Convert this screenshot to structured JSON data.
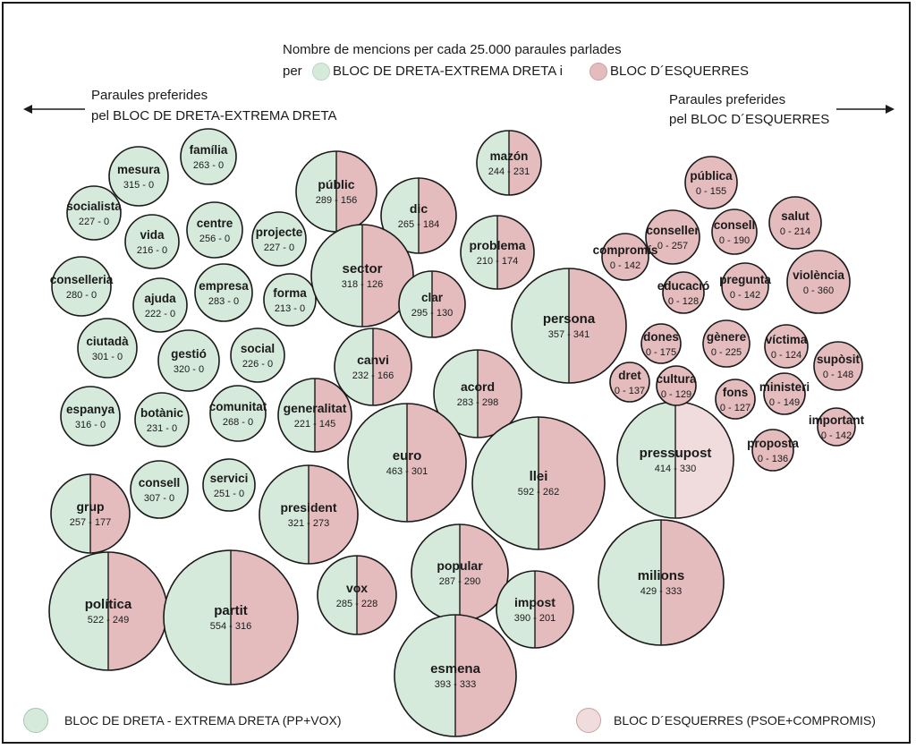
{
  "header": {
    "line1": "Nombre de mencions per cada 25.000 paraules parlades",
    "line2_prefix": "per",
    "line2_right_label": "BLOC DE DRETA-EXTREMA DRETA  i",
    "line2_left_label": "BLOC D´ESQUERRES"
  },
  "side_labels": {
    "left_line1": "Paraules preferides",
    "left_line2": "pel BLOC DE DRETA-EXTREMA DRETA",
    "right_line1": "Paraules preferides",
    "right_line2": "pel BLOC D´ESQUERRES"
  },
  "legend": {
    "right_bloc": "BLOC DE DRETA - EXTREMA DRETA  (PP+VOX)",
    "left_bloc": "BLOC D´ESQUERRES (PSOE+COMPROMIS)"
  },
  "colors": {
    "right_bloc": "#d5eadb",
    "left_bloc": "#e4bcbe",
    "right_bloc_light": "#e6f2e9",
    "left_bloc_light": "#f1dcdd",
    "outline": "#1a1a1a"
  },
  "chart_data": {
    "type": "bubble-split",
    "description_units": "mencions per 25.000 paraules",
    "series": [
      {
        "name": "BLOC DE DRETA-EXTREMA DRETA",
        "color": "#d5eadb"
      },
      {
        "name": "BLOC D´ESQUERRES",
        "color": "#e4bcbe"
      }
    ],
    "words": [
      {
        "word": "mesura",
        "right": 315,
        "left": 0
      },
      {
        "word": "família",
        "right": 263,
        "left": 0
      },
      {
        "word": "socialista",
        "right": 227,
        "left": 0
      },
      {
        "word": "vida",
        "right": 216,
        "left": 0
      },
      {
        "word": "centre",
        "right": 256,
        "left": 0
      },
      {
        "word": "projecte",
        "right": 227,
        "left": 0
      },
      {
        "word": "conselleria",
        "right": 280,
        "left": 0
      },
      {
        "word": "ajuda",
        "right": 222,
        "left": 0
      },
      {
        "word": "empresa",
        "right": 283,
        "left": 0
      },
      {
        "word": "forma",
        "right": 213,
        "left": 0
      },
      {
        "word": "ciutadà",
        "right": 301,
        "left": 0
      },
      {
        "word": "gestió",
        "right": 320,
        "left": 0
      },
      {
        "word": "social",
        "right": 226,
        "left": 0
      },
      {
        "word": "espanya",
        "right": 316,
        "left": 0
      },
      {
        "word": "botànic",
        "right": 231,
        "left": 0
      },
      {
        "word": "comunitat",
        "right": 268,
        "left": 0
      },
      {
        "word": "consell",
        "right": 307,
        "left": 0
      },
      {
        "word": "servici",
        "right": 251,
        "left": 0
      },
      {
        "word": "grup",
        "right": 257,
        "left": 177
      },
      {
        "word": "públic",
        "right": 289,
        "left": 156
      },
      {
        "word": "dic",
        "right": 265,
        "left": 184
      },
      {
        "word": "mazón",
        "right": 244,
        "left": 231
      },
      {
        "word": "sector",
        "right": 318,
        "left": 126
      },
      {
        "word": "problema",
        "right": 210,
        "left": 174
      },
      {
        "word": "clar",
        "right": 295,
        "left": 130
      },
      {
        "word": "canvi",
        "right": 232,
        "left": 166
      },
      {
        "word": "persona",
        "right": 357,
        "left": 341
      },
      {
        "word": "acord",
        "right": 283,
        "left": 298
      },
      {
        "word": "generalitat",
        "right": 221,
        "left": 145
      },
      {
        "word": "euro",
        "right": 463,
        "left": 301
      },
      {
        "word": "llei",
        "right": 592,
        "left": 262
      },
      {
        "word": "pressupost",
        "right": 414,
        "left": 330
      },
      {
        "word": "president",
        "right": 321,
        "left": 273
      },
      {
        "word": "popular",
        "right": 287,
        "left": 290
      },
      {
        "word": "vox",
        "right": 285,
        "left": 228
      },
      {
        "word": "milions",
        "right": 429,
        "left": 333
      },
      {
        "word": "política",
        "right": 522,
        "left": 249
      },
      {
        "word": "partit",
        "right": 554,
        "left": 316
      },
      {
        "word": "impost",
        "right": 390,
        "left": 201
      },
      {
        "word": "esmena",
        "right": 393,
        "left": 333
      },
      {
        "word": "pública",
        "right": 0,
        "left": 155
      },
      {
        "word": "conseller",
        "right": 0,
        "left": 257
      },
      {
        "word": "consell",
        "right": 0,
        "left": 190
      },
      {
        "word": "salut",
        "right": 0,
        "left": 214
      },
      {
        "word": "compromís",
        "right": 0,
        "left": 142
      },
      {
        "word": "educació",
        "right": 0,
        "left": 128
      },
      {
        "word": "pregunta",
        "right": 0,
        "left": 142
      },
      {
        "word": "violència",
        "right": 0,
        "left": 360
      },
      {
        "word": "dones",
        "right": 0,
        "left": 175
      },
      {
        "word": "gènere",
        "right": 0,
        "left": 225
      },
      {
        "word": "víctima",
        "right": 0,
        "left": 124
      },
      {
        "word": "supòsit",
        "right": 0,
        "left": 148
      },
      {
        "word": "dret",
        "right": 0,
        "left": 137
      },
      {
        "word": "cultura",
        "right": 0,
        "left": 129
      },
      {
        "word": "fons",
        "right": 0,
        "left": 127
      },
      {
        "word": "ministeri",
        "right": 0,
        "left": 149
      },
      {
        "word": "important",
        "right": 0,
        "left": 142
      },
      {
        "word": "proposta",
        "right": 0,
        "left": 136
      }
    ]
  }
}
